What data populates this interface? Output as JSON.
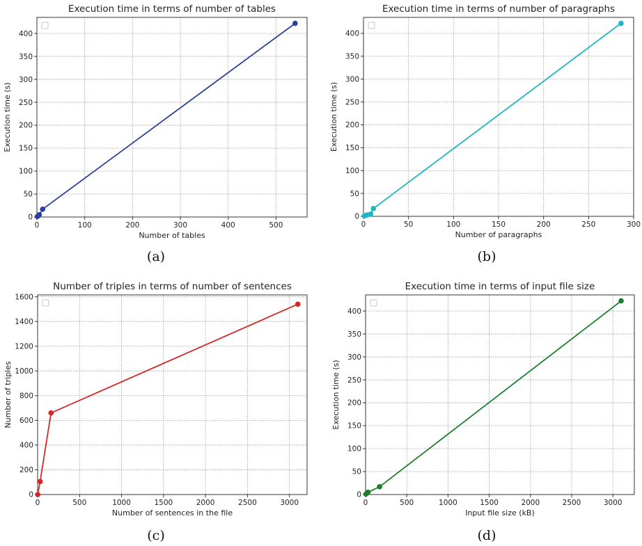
{
  "chart_data": [
    {
      "type": "line",
      "title": "Execution time in terms of number of tables",
      "xlabel": "Number of tables",
      "ylabel": "Execution time (s)",
      "caption": "(a)",
      "xlim": [
        0,
        565
      ],
      "ylim": [
        0,
        435
      ],
      "xticks": [
        0,
        100,
        200,
        300,
        400,
        500
      ],
      "yticks": [
        0,
        50,
        100,
        150,
        200,
        250,
        300,
        350,
        400
      ],
      "grid": true,
      "legend": "top-left",
      "series": [
        {
          "color": "#2a3f9c",
          "x": [
            1,
            5,
            12,
            540
          ],
          "y": [
            1,
            5,
            17,
            422
          ]
        }
      ]
    },
    {
      "type": "line",
      "title": "Execution time in terms of number of paragraphs",
      "xlabel": "Number of paragraphs",
      "ylabel": "Execution time (s)",
      "caption": "(b)",
      "xlim": [
        0,
        300
      ],
      "ylim": [
        0,
        435
      ],
      "xticks": [
        0,
        50,
        100,
        150,
        200,
        250,
        300
      ],
      "yticks": [
        0,
        50,
        100,
        150,
        200,
        250,
        300,
        350,
        400
      ],
      "grid": true,
      "legend": "top-left",
      "series": [
        {
          "color": "#1fb5c3",
          "x": [
            1,
            4,
            8,
            11,
            286
          ],
          "y": [
            1,
            3,
            5,
            17,
            422
          ]
        }
      ]
    },
    {
      "type": "line",
      "title": "Number of triples in terms of number of sentences",
      "xlabel": "Number of sentences in the file",
      "ylabel": "Number of triples",
      "caption": "(c)",
      "xlim": [
        0,
        3210
      ],
      "ylim": [
        0,
        1615
      ],
      "xticks": [
        0,
        500,
        1000,
        1500,
        2000,
        2500,
        3000
      ],
      "yticks": [
        0,
        200,
        400,
        600,
        800,
        1000,
        1200,
        1400,
        1600
      ],
      "grid": true,
      "legend": "top-left",
      "series": [
        {
          "color": "#d62728",
          "x": [
            2,
            30,
            160,
            3100
          ],
          "y": [
            0,
            105,
            660,
            1540
          ]
        }
      ]
    },
    {
      "type": "line",
      "title": "Execution time in terms of input file size",
      "xlabel": "Input file size (kB)",
      "ylabel": "Execution time (s)",
      "caption": "(d)",
      "xlim": [
        0,
        3260
      ],
      "ylim": [
        0,
        435
      ],
      "xticks": [
        0,
        500,
        1000,
        1500,
        2000,
        2500,
        3000
      ],
      "yticks": [
        0,
        50,
        100,
        150,
        200,
        250,
        300,
        350,
        400
      ],
      "grid": true,
      "legend": "top-left",
      "series": [
        {
          "color": "#1a7f2e",
          "x": [
            5,
            30,
            170,
            3100
          ],
          "y": [
            1,
            5,
            17,
            422
          ]
        }
      ]
    }
  ]
}
